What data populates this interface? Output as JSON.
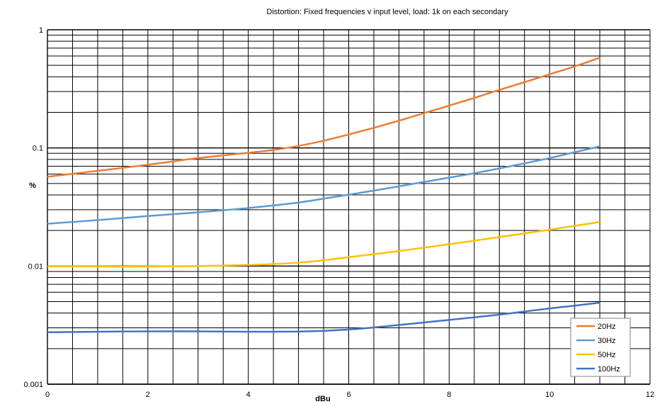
{
  "chart_data": {
    "type": "line",
    "title": "Distortion: Fixed frequencies v input level, load: 1k on each secondary",
    "xlabel": "dBu",
    "ylabel": "%",
    "xlim": [
      0,
      12
    ],
    "ylim": [
      0.001,
      1
    ],
    "y_scale": "log",
    "x_ticks": [
      "0",
      "2",
      "4",
      "6",
      "8",
      "10",
      "12"
    ],
    "y_ticks": [
      "0.001",
      "0.01",
      "0.1",
      "1"
    ],
    "grid": true,
    "legend_position": "bottom-right",
    "series": [
      {
        "name": "20Hz",
        "color": "#ED7D31",
        "x": [
          0,
          1,
          2,
          3,
          4,
          4.5,
          5,
          5.5,
          6,
          6.5,
          7,
          7.5,
          8,
          8.5,
          9,
          9.5,
          10,
          10.5,
          11
        ],
        "values": [
          0.057,
          0.064,
          0.072,
          0.082,
          0.091,
          0.096,
          0.104,
          0.115,
          0.13,
          0.148,
          0.17,
          0.197,
          0.228,
          0.265,
          0.31,
          0.36,
          0.42,
          0.49,
          0.58
        ]
      },
      {
        "name": "30Hz",
        "color": "#5B9BD5",
        "x": [
          0,
          1,
          2,
          3,
          4,
          5,
          5.5,
          6,
          6.5,
          7,
          7.5,
          8,
          8.5,
          9,
          9.5,
          10,
          10.5,
          11
        ],
        "values": [
          0.0228,
          0.0245,
          0.0265,
          0.0285,
          0.031,
          0.0345,
          0.0372,
          0.0402,
          0.0435,
          0.0473,
          0.0515,
          0.056,
          0.061,
          0.067,
          0.074,
          0.082,
          0.092,
          0.103
        ]
      },
      {
        "name": "50Hz",
        "color": "#FFC000",
        "x": [
          0,
          1,
          2,
          3,
          4,
          4.5,
          5,
          5.5,
          6,
          6.5,
          7,
          7.5,
          8,
          8.5,
          9,
          9.5,
          10,
          10.5,
          11
        ],
        "values": [
          0.0099,
          0.0099,
          0.0099,
          0.01,
          0.0102,
          0.0104,
          0.0107,
          0.0112,
          0.0119,
          0.0126,
          0.0134,
          0.0143,
          0.0153,
          0.0164,
          0.0176,
          0.0189,
          0.0203,
          0.0219,
          0.0236
        ]
      },
      {
        "name": "100Hz",
        "color": "#4472C4",
        "x": [
          0,
          1,
          2,
          3,
          4,
          5,
          5.5,
          6,
          6.5,
          7,
          7.5,
          8,
          8.5,
          9,
          9.5,
          10,
          10.5,
          11
        ],
        "values": [
          0.00275,
          0.00278,
          0.0028,
          0.0028,
          0.00278,
          0.00279,
          0.00283,
          0.0029,
          0.00302,
          0.00317,
          0.00333,
          0.0035,
          0.00368,
          0.00388,
          0.00412,
          0.00438,
          0.00462,
          0.0049
        ]
      }
    ]
  }
}
